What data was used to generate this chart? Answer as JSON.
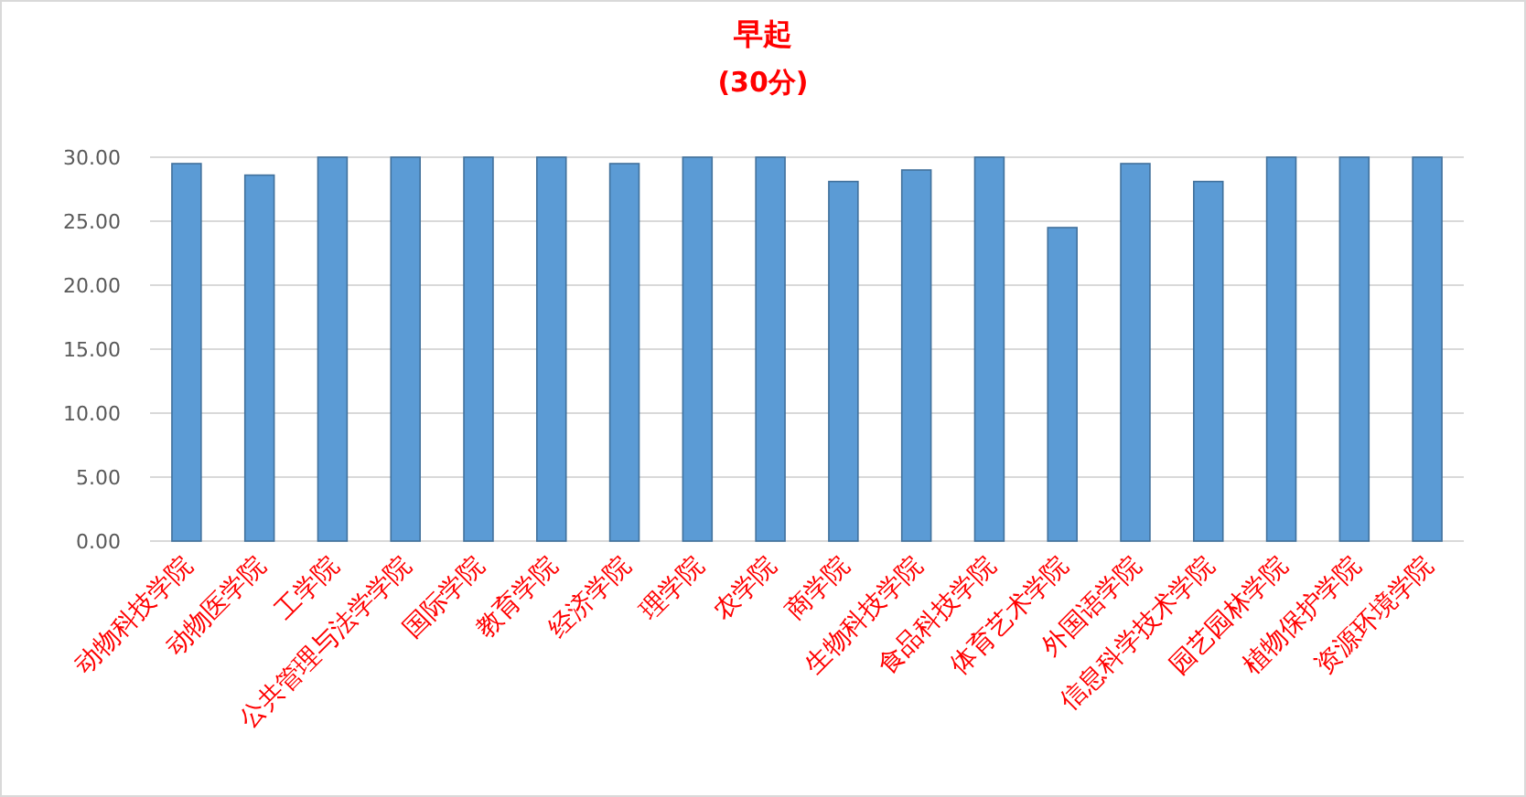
{
  "chart_data": {
    "type": "bar",
    "title": "早起",
    "subtitle": "(30分)",
    "categories": [
      "动物科技学院",
      "动物医学院",
      "工学院",
      "公共管理与法学学院",
      "国际学院",
      "教育学院",
      "经济学院",
      "理学院",
      "农学院",
      "商学院",
      "生物科技学院",
      "食品科技学院",
      "体育艺术学院",
      "外国语学院",
      "信息科学技术学院",
      "园艺园林学院",
      "植物保护学院",
      "资源环境学院"
    ],
    "values": [
      29.5,
      28.6,
      30,
      30,
      30,
      30,
      29.5,
      30,
      30,
      28.1,
      29.0,
      30,
      24.5,
      29.5,
      28.1,
      30,
      30,
      30
    ],
    "color": "#5b9bd5",
    "ylim": [
      0,
      30
    ],
    "yticks": [
      {
        "value": 0,
        "label": "0.00"
      },
      {
        "value": 5,
        "label": "5.00"
      },
      {
        "value": 10,
        "label": "10.00"
      },
      {
        "value": 15,
        "label": "15.00"
      },
      {
        "value": 20,
        "label": "20.00"
      },
      {
        "value": 25,
        "label": "25.00"
      },
      {
        "value": 30,
        "label": "30.00"
      }
    ],
    "grid": "y"
  }
}
